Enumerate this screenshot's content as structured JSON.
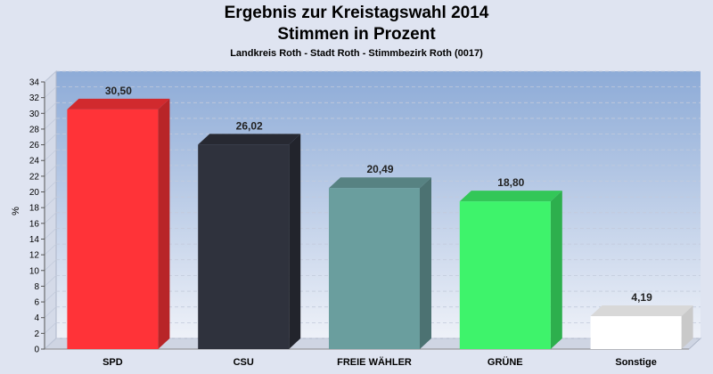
{
  "header": {
    "title": "Ergebnis zur Kreistagswahl 2014",
    "subtitle": "Stimmen in Prozent",
    "location": "Landkreis Roth - Stadt Roth - Stimmbezirk Roth (0017)"
  },
  "chart_data": {
    "type": "bar",
    "title": "Ergebnis zur Kreistagswahl 2014",
    "subtitle": "Stimmen in Prozent",
    "ylabel": "%",
    "xlabel": "",
    "ylim": [
      0,
      34
    ],
    "yticks": [
      "0",
      "2",
      "4",
      "6",
      "8",
      "10",
      "12",
      "14",
      "16",
      "18",
      "20",
      "22",
      "24",
      "26",
      "28",
      "30",
      "32",
      "34"
    ],
    "categories": [
      "SPD",
      "CSU",
      "FREIE WÄHLER",
      "GRÜNE",
      "Sonstige"
    ],
    "values": [
      30.5,
      26.02,
      20.49,
      18.8,
      4.19
    ],
    "value_labels": [
      "30,50",
      "26,02",
      "20,49",
      "18,80",
      "4,19"
    ],
    "colors": [
      "#ff3338",
      "#2f323d",
      "#6a9e9e",
      "#3ef36b",
      "#ffffff"
    ],
    "grid": true,
    "legend": "none"
  }
}
